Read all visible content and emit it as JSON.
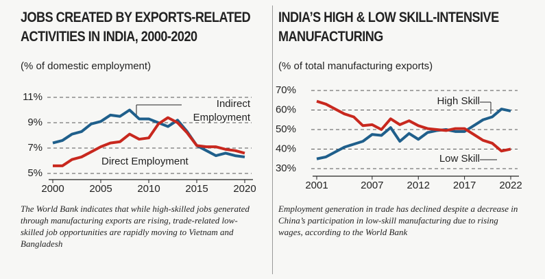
{
  "chart_data": [
    {
      "type": "line",
      "title": [
        "JOBS CREATED BY EXPORTS-RELATED",
        "ACTIVITIES IN INDIA, 2000-2020"
      ],
      "subtitle": "(% of domestic employment)",
      "caption": "The World Bank indicates that while high-skilled jobs generated through manufacturing exports are rising, trade-related low-skilled job opportunities are rapidly moving to Vietnam and Bangladesh",
      "x": [
        2000,
        2001,
        2002,
        2003,
        2004,
        2005,
        2006,
        2007,
        2008,
        2009,
        2010,
        2011,
        2012,
        2013,
        2014,
        2015,
        2016,
        2017,
        2018,
        2019,
        2020
      ],
      "series": [
        {
          "name": "Indirect Employment",
          "color": "#1f5f8b",
          "values": [
            7.4,
            7.6,
            8.1,
            8.3,
            8.9,
            9.1,
            9.6,
            9.5,
            10.0,
            9.3,
            9.3,
            9.0,
            8.7,
            9.2,
            8.3,
            7.2,
            6.8,
            6.4,
            6.6,
            6.4,
            6.3
          ]
        },
        {
          "name": "Direct Employment",
          "color": "#c8281e",
          "values": [
            5.6,
            5.6,
            6.1,
            6.3,
            6.7,
            7.1,
            7.4,
            7.5,
            8.1,
            7.7,
            7.8,
            8.9,
            9.4,
            9.0,
            8.2,
            7.2,
            7.1,
            7.1,
            6.9,
            6.8,
            6.6
          ]
        }
      ],
      "xlim": [
        2000,
        2020
      ],
      "xticks": [
        2000,
        2005,
        2010,
        2015,
        2020
      ],
      "ylim": [
        5,
        11
      ],
      "yticks": [
        {
          "value": 5,
          "label": "5%"
        },
        {
          "value": 7,
          "label": "7%"
        },
        {
          "value": 9,
          "label": "9%"
        },
        {
          "value": 11,
          "label": "11%"
        }
      ],
      "grid": true
    },
    {
      "type": "line",
      "title": [
        "INDIA’S HIGH & LOW SKILL-INTENSIVE",
        "MANUFACTURING"
      ],
      "subtitle": "(% of total manufacturing exports)",
      "caption": "Employment generation in trade has declined despite a decrease in China’s participation in low-skill manufacturing due to rising wages, according to the World Bank",
      "x": [
        2001,
        2002,
        2003,
        2004,
        2005,
        2006,
        2007,
        2008,
        2009,
        2010,
        2011,
        2012,
        2013,
        2014,
        2015,
        2016,
        2017,
        2018,
        2019,
        2020,
        2021,
        2022
      ],
      "series": [
        {
          "name": "High Skill",
          "color": "#1f5f8b",
          "values": [
            35,
            36,
            38.5,
            41,
            42.5,
            44,
            47.5,
            47,
            51,
            44,
            48,
            45,
            48.5,
            49.5,
            50,
            49,
            49,
            52,
            55,
            56.5,
            60.5,
            59.5
          ]
        },
        {
          "name": "Low Skill",
          "color": "#c8281e",
          "values": [
            64.5,
            63,
            60.5,
            58,
            56.5,
            52,
            52.5,
            50,
            55.5,
            52.5,
            54.5,
            52,
            50.5,
            50,
            49.5,
            50.5,
            50.5,
            47.5,
            44.5,
            43,
            39,
            40
          ]
        }
      ],
      "xlim": [
        2001,
        2022
      ],
      "xticks": [
        2001,
        2007,
        2012,
        2017,
        2022
      ],
      "ylim": [
        30,
        70
      ],
      "yticks": [
        {
          "value": 30,
          "label": "30%"
        },
        {
          "value": 40,
          "label": "40%"
        },
        {
          "value": 50,
          "label": "50%"
        },
        {
          "value": 60,
          "label": "60%"
        },
        {
          "value": 70,
          "label": "70%"
        }
      ],
      "grid": true
    }
  ]
}
